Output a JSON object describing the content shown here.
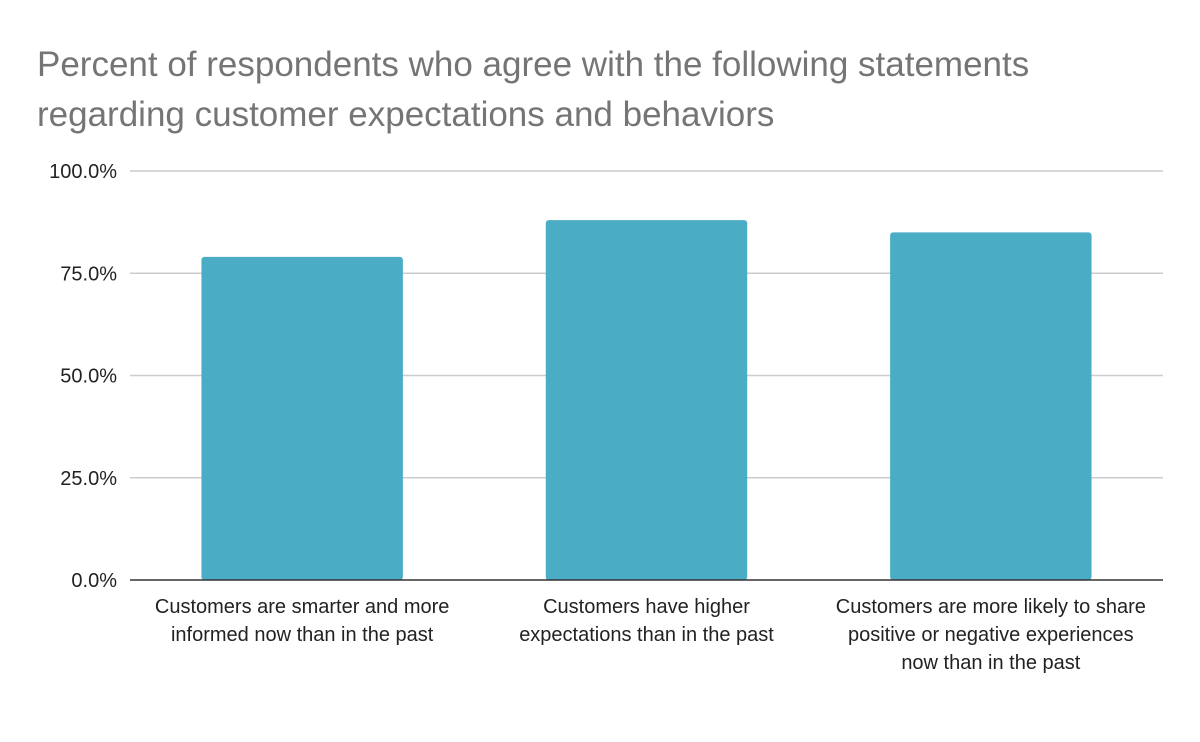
{
  "chart_data": {
    "type": "bar",
    "title": "Percent of respondents who agree with the following statements regarding customer expectations and behaviors",
    "categories": [
      "Customers are smarter and more informed now than in the past",
      "Customers have higher expectations than in the past",
      "Customers are more likely to share positive or negative experiences now than in the past"
    ],
    "values": [
      79,
      88,
      85
    ],
    "value_unit": "percent",
    "xlabel": "",
    "ylabel": "",
    "ylim": [
      0,
      100
    ],
    "yticks": [
      "0.0%",
      "25.0%",
      "50.0%",
      "75.0%",
      "100.0%"
    ],
    "grid": true,
    "legend": "none",
    "colors": {
      "bar": "#4bacc6",
      "title": "#757575",
      "grid": "#cccccc",
      "axis": "#333333"
    }
  }
}
